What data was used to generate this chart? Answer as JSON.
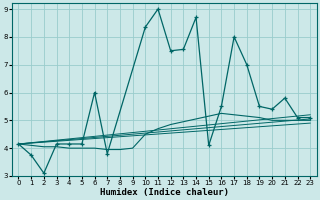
{
  "xlabel": "Humidex (Indice chaleur)",
  "bg_color": "#cce8e8",
  "grid_color": "#99cccc",
  "line_color": "#006666",
  "xlim": [
    -0.5,
    23.5
  ],
  "ylim": [
    3,
    9.2
  ],
  "xticks": [
    0,
    1,
    2,
    3,
    4,
    5,
    6,
    7,
    8,
    9,
    10,
    11,
    12,
    13,
    14,
    15,
    16,
    17,
    18,
    19,
    20,
    21,
    22,
    23
  ],
  "yticks": [
    3,
    4,
    5,
    6,
    7,
    8,
    9
  ],
  "series1_x": [
    0,
    1,
    2,
    3,
    4,
    5,
    6,
    7,
    10,
    11,
    12,
    13,
    14,
    15,
    16,
    17,
    18,
    19,
    20,
    21,
    22,
    23
  ],
  "series1_y": [
    4.15,
    3.75,
    3.1,
    4.15,
    4.15,
    4.15,
    6.0,
    3.8,
    8.35,
    9.0,
    7.5,
    7.55,
    8.7,
    4.1,
    5.5,
    8.0,
    7.0,
    5.5,
    5.4,
    5.8,
    5.1,
    5.1
  ],
  "series2_x": [
    0,
    1,
    2,
    3,
    4,
    5,
    6,
    7,
    8,
    9,
    10,
    11,
    12,
    13,
    14,
    15,
    16,
    17,
    18,
    19,
    20,
    21,
    22,
    23
  ],
  "series2_y": [
    4.15,
    4.1,
    4.05,
    4.05,
    4.0,
    4.0,
    4.0,
    3.95,
    3.95,
    4.0,
    4.5,
    4.7,
    4.85,
    4.95,
    5.05,
    5.15,
    5.25,
    5.2,
    5.15,
    5.1,
    5.0,
    5.0,
    5.0,
    5.0
  ],
  "series3_x": [
    0,
    23
  ],
  "series3_y": [
    4.15,
    5.2
  ],
  "series4_x": [
    0,
    23
  ],
  "series4_y": [
    4.15,
    5.05
  ],
  "series5_x": [
    0,
    23
  ],
  "series5_y": [
    4.15,
    4.9
  ],
  "marker_x": [
    0,
    1,
    2,
    3,
    4,
    5,
    6,
    7,
    10,
    11,
    12,
    13,
    14,
    15,
    16,
    17,
    18,
    19,
    20,
    21,
    22,
    23
  ],
  "marker_y": [
    4.15,
    3.75,
    3.1,
    4.15,
    4.15,
    4.15,
    6.0,
    3.8,
    8.35,
    9.0,
    7.5,
    7.55,
    8.7,
    4.1,
    5.5,
    8.0,
    7.0,
    5.5,
    5.4,
    5.8,
    5.1,
    5.1
  ]
}
